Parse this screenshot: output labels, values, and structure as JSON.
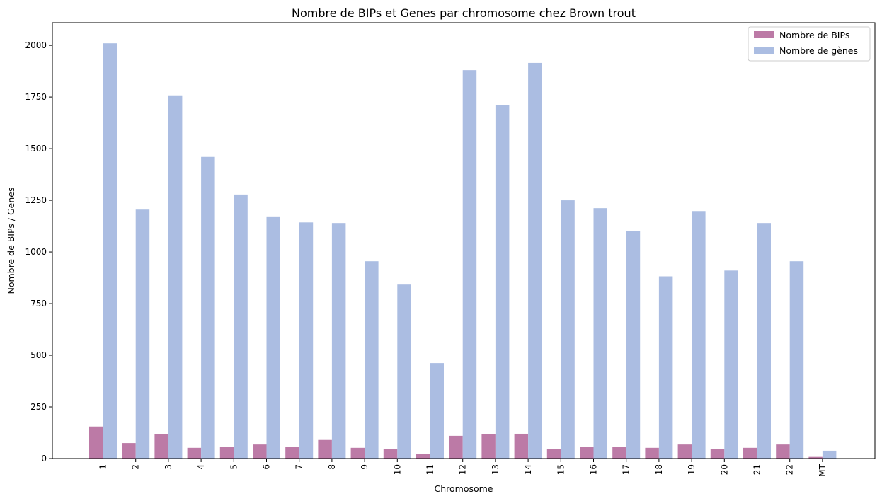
{
  "chart_data": {
    "type": "bar",
    "title": "Nombre de BIPs et Genes par chromosome chez Brown trout",
    "xlabel": "Chromosome",
    "ylabel": "Nombre de BIPs / Genes",
    "categories": [
      "1",
      "2",
      "3",
      "4",
      "5",
      "6",
      "7",
      "8",
      "9",
      "10",
      "11",
      "12",
      "13",
      "14",
      "15",
      "16",
      "17",
      "18",
      "19",
      "20",
      "21",
      "22",
      "MT"
    ],
    "series": [
      {
        "name": "Nombre de BIPs",
        "color": "#bc7aa6",
        "values": [
          155,
          75,
          118,
          52,
          58,
          68,
          55,
          90,
          52,
          45,
          22,
          110,
          118,
          120,
          45,
          58,
          58,
          52,
          68,
          45,
          52,
          68,
          8
        ]
      },
      {
        "name": "Nombre de gènes",
        "color": "#abbde2",
        "values": [
          2010,
          1205,
          1758,
          1460,
          1278,
          1172,
          1143,
          1140,
          955,
          842,
          462,
          1880,
          1710,
          1915,
          1250,
          1212,
          1100,
          882,
          1198,
          910,
          1140,
          955,
          38
        ]
      }
    ],
    "yticks": [
      0,
      250,
      500,
      750,
      1000,
      1250,
      1500,
      1750,
      2000
    ],
    "ylim": [
      0,
      2110
    ],
    "grid": false,
    "legend_position": "top-right"
  }
}
